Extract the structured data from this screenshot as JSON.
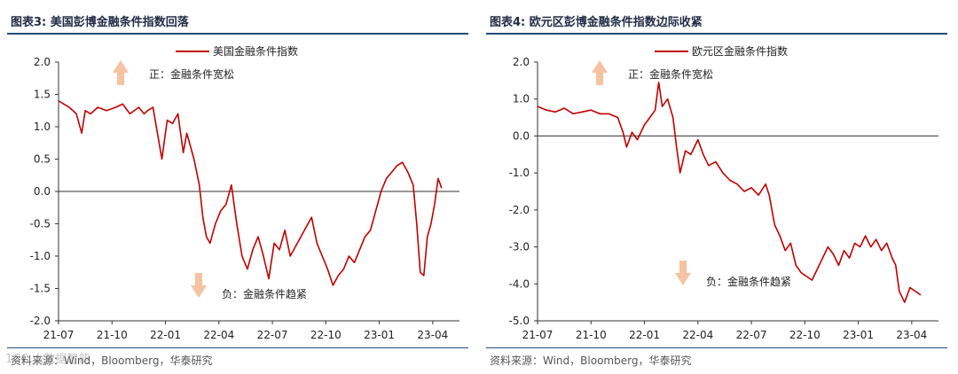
{
  "colors": {
    "series": "#c00000",
    "axis": "#333333",
    "arrow": "#f5c3a0",
    "rule": "#1f4e79"
  },
  "chart_data": [
    {
      "type": "line",
      "title": "图表3:  美国彭博金融条件指数回落",
      "legend": "美国金融条件指数",
      "legend_position": "top-left",
      "source": "资料来源：Wind，Bloomberg，华泰研究",
      "up_note": "正：金融条件宽松",
      "down_note": "负：金融条件趋紧",
      "ylim": [
        -2.0,
        2.0
      ],
      "yticks": [
        "2.0",
        "1.5",
        "1.0",
        "0.5",
        "0.0",
        "-0.5",
        "-1.0",
        "-1.5",
        "-2.0"
      ],
      "ytick_values": [
        2.0,
        1.5,
        1.0,
        0.5,
        0.0,
        -0.5,
        -1.0,
        -1.5,
        -2.0
      ],
      "xticks": [
        "21-07",
        "21-10",
        "22-01",
        "22-04",
        "22-07",
        "22-10",
        "23-01",
        "23-04"
      ],
      "xtick_positions": [
        0,
        3,
        6,
        9,
        12,
        15,
        18,
        21
      ],
      "xlim": [
        0,
        22.5
      ],
      "grid": false,
      "series": [
        {
          "x": [
            0,
            0.3,
            0.6,
            1.0,
            1.3,
            1.5,
            1.8,
            2.2,
            2.7,
            3.2,
            3.6,
            4.0,
            4.5,
            4.8,
            5.0,
            5.3,
            5.8,
            6.1,
            6.4,
            6.7,
            7.0,
            7.2,
            7.6,
            7.9,
            8.1,
            8.3,
            8.5,
            8.8,
            9.1,
            9.4,
            9.7,
            10.0,
            10.3,
            10.6,
            10.9,
            11.2,
            11.5,
            11.8,
            12.1,
            12.4,
            12.7,
            13.0,
            13.3,
            13.6,
            13.9,
            14.2,
            14.5,
            14.8,
            15.1,
            15.4,
            15.7,
            16.0,
            16.3,
            16.6,
            16.9,
            17.2,
            17.5,
            17.8,
            18.1,
            18.4,
            18.7,
            19.0,
            19.3,
            19.6,
            19.9,
            20.1,
            20.3,
            20.5,
            20.7,
            20.9,
            21.1,
            21.3,
            21.5
          ],
          "y": [
            1.4,
            1.35,
            1.3,
            1.2,
            0.9,
            1.25,
            1.2,
            1.3,
            1.25,
            1.3,
            1.35,
            1.2,
            1.3,
            1.2,
            1.25,
            1.3,
            0.5,
            1.1,
            1.05,
            1.2,
            0.6,
            0.9,
            0.5,
            0.1,
            -0.4,
            -0.7,
            -0.8,
            -0.5,
            -0.3,
            -0.2,
            0.1,
            -0.5,
            -1.0,
            -1.2,
            -0.9,
            -0.7,
            -1.0,
            -1.35,
            -0.8,
            -0.9,
            -0.6,
            -1.0,
            -0.85,
            -0.7,
            -0.55,
            -0.4,
            -0.8,
            -1.0,
            -1.2,
            -1.45,
            -1.3,
            -1.2,
            -1.0,
            -1.1,
            -0.9,
            -0.7,
            -0.6,
            -0.3,
            0.0,
            0.2,
            0.3,
            0.4,
            0.45,
            0.3,
            0.1,
            -0.5,
            -1.25,
            -1.3,
            -0.7,
            -0.5,
            -0.2,
            0.2,
            0.05
          ]
        }
      ]
    },
    {
      "type": "line",
      "title": "图表4:  欧元区彭博金融条件指数边际收紧",
      "legend": "欧元区金融条件指数",
      "legend_position": "top-left",
      "source": "资料来源：Wind，Bloomberg，华泰研究",
      "up_note": "正：金融条件宽松",
      "down_note": "负：金融条件趋紧",
      "ylim": [
        -5.0,
        2.0
      ],
      "yticks": [
        "2.0",
        "1.0",
        "0.0",
        "-1.0",
        "-2.0",
        "-3.0",
        "-4.0",
        "-5.0"
      ],
      "ytick_values": [
        2.0,
        1.0,
        0.0,
        -1.0,
        -2.0,
        -3.0,
        -4.0,
        -5.0
      ],
      "xticks": [
        "21-07",
        "21-10",
        "22-01",
        "22-04",
        "22-07",
        "22-10",
        "23-01",
        "23-04"
      ],
      "xtick_positions": [
        0,
        3,
        6,
        9,
        12,
        15,
        18,
        21
      ],
      "xlim": [
        0,
        22.5
      ],
      "grid": false,
      "series": [
        {
          "x": [
            0,
            0.5,
            1.0,
            1.5,
            2.0,
            2.5,
            3.0,
            3.5,
            4.0,
            4.5,
            4.8,
            5.0,
            5.3,
            5.6,
            6.0,
            6.3,
            6.6,
            6.8,
            7.0,
            7.3,
            7.6,
            7.8,
            8.0,
            8.3,
            8.6,
            9.0,
            9.3,
            9.6,
            10.0,
            10.4,
            10.8,
            11.2,
            11.6,
            12.0,
            12.4,
            12.8,
            13.0,
            13.3,
            13.6,
            13.9,
            14.2,
            14.5,
            14.8,
            15.1,
            15.4,
            15.7,
            16.0,
            16.3,
            16.6,
            16.9,
            17.2,
            17.5,
            17.8,
            18.1,
            18.4,
            18.7,
            19.0,
            19.3,
            19.6,
            19.9,
            20.1,
            20.3,
            20.6,
            20.9,
            21.2,
            21.5
          ],
          "y": [
            0.8,
            0.7,
            0.65,
            0.75,
            0.6,
            0.65,
            0.7,
            0.6,
            0.6,
            0.5,
            0.1,
            -0.3,
            0.1,
            -0.1,
            0.3,
            0.5,
            0.7,
            1.45,
            0.8,
            1.0,
            0.5,
            -0.3,
            -1.0,
            -0.4,
            -0.5,
            -0.1,
            -0.5,
            -0.8,
            -0.7,
            -1.0,
            -1.2,
            -1.3,
            -1.5,
            -1.4,
            -1.6,
            -1.3,
            -1.6,
            -2.4,
            -2.7,
            -3.1,
            -2.9,
            -3.5,
            -3.7,
            -3.8,
            -3.9,
            -3.6,
            -3.3,
            -3.0,
            -3.2,
            -3.5,
            -3.1,
            -3.3,
            -2.9,
            -3.0,
            -2.7,
            -3.0,
            -2.8,
            -3.1,
            -2.9,
            -3.3,
            -3.5,
            -4.2,
            -4.5,
            -4.1,
            -4.2,
            -4.3
          ]
        }
      ]
    }
  ],
  "watermark": "1CC 大数据智能"
}
